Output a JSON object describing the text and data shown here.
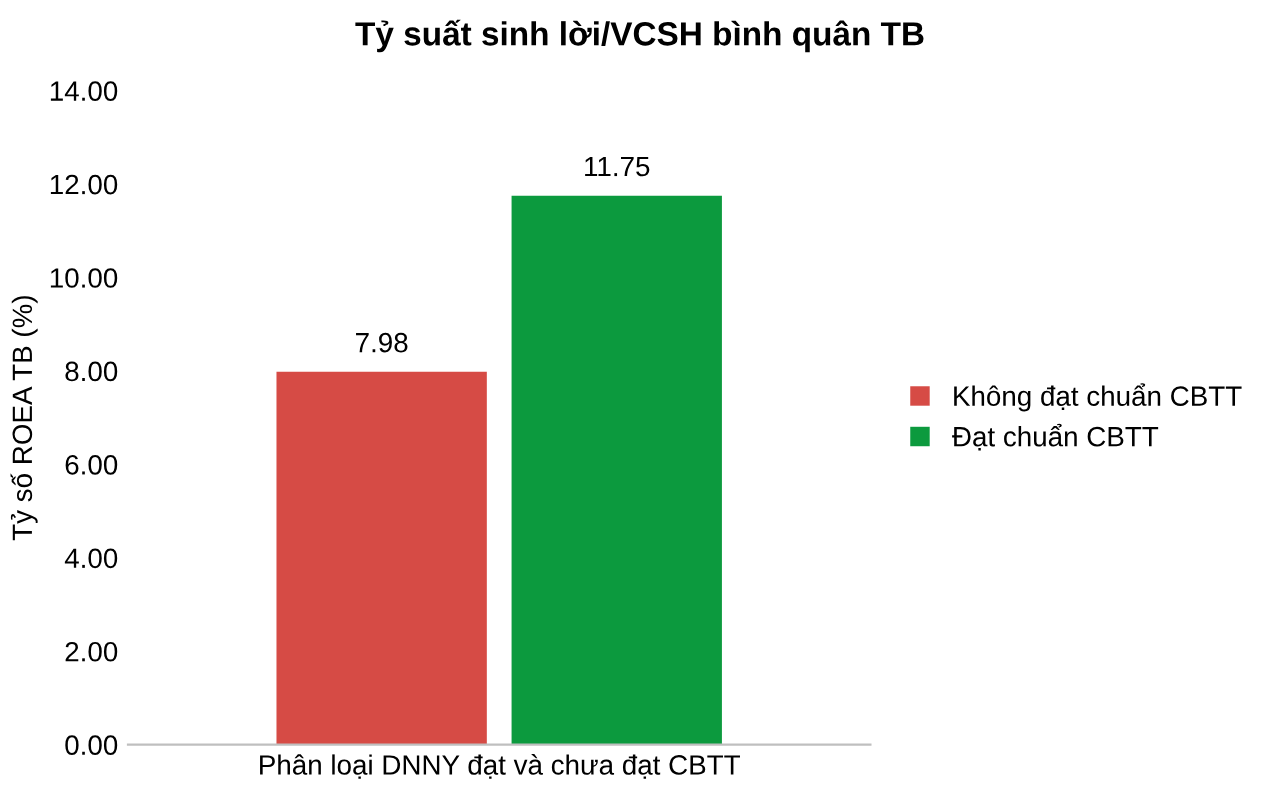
{
  "chart_data": {
    "type": "bar",
    "title": "Tỷ suất sinh lời/VCSH bình quân TB",
    "ylabel": "Tỷ số ROEA TB (%)",
    "categories": [
      "Phân loại DNNY đạt và chưa đạt CBTT"
    ],
    "series": [
      {
        "name": "Không đạt chuẩn CBTT",
        "color": "#d64b45",
        "values": [
          7.98
        ]
      },
      {
        "name": "Đạt chuẩn CBTT",
        "color": "#0c9a3e",
        "values": [
          11.75
        ]
      }
    ],
    "ylim": [
      0,
      14
    ],
    "yticks": [
      {
        "value": 0,
        "label": "0.00"
      },
      {
        "value": 2,
        "label": "2.00"
      },
      {
        "value": 4,
        "label": "4.00"
      },
      {
        "value": 6,
        "label": "6.00"
      },
      {
        "value": 8,
        "label": "8.00"
      },
      {
        "value": 10,
        "label": "10.00"
      },
      {
        "value": 12,
        "label": "12.00"
      },
      {
        "value": 14,
        "label": "14.00"
      }
    ],
    "data_labels": true,
    "grid": false,
    "legend": "right"
  }
}
